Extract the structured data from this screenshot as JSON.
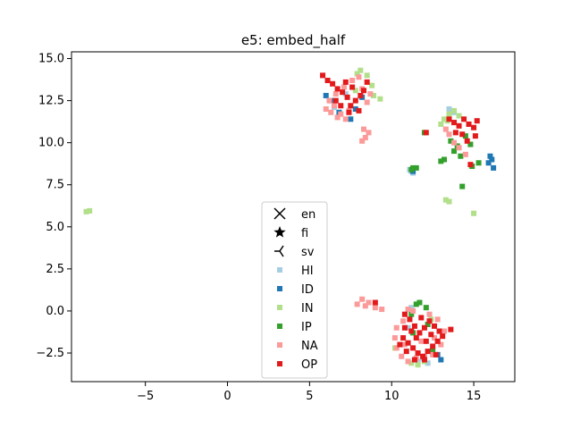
{
  "chart_data": {
    "type": "scatter",
    "title": "e5: embed_half",
    "xlabel": "",
    "ylabel": "",
    "xlim": [
      -9.5,
      17.5
    ],
    "ylim": [
      -4.2,
      15.4
    ],
    "xticks": [
      -5,
      0,
      5,
      10,
      15
    ],
    "xtick_labels": [
      "−5",
      "0",
      "5",
      "10",
      "15"
    ],
    "yticks": [
      -2.5,
      0.0,
      2.5,
      5.0,
      7.5,
      10.0,
      12.5,
      15.0
    ],
    "ytick_labels": [
      "−2.5",
      "0.0",
      "2.5",
      "5.0",
      "7.5",
      "10.0",
      "12.5",
      "15.0"
    ],
    "grid": false,
    "legend_position": "lower-center",
    "marker_legend": [
      {
        "label": "en",
        "marker": "x"
      },
      {
        "label": "fi",
        "marker": "star"
      },
      {
        "label": "sv",
        "marker": "tri"
      }
    ],
    "series": [
      {
        "name": "HI",
        "color": "#a6cee3",
        "points": [
          [
            11.2,
            8.3
          ],
          [
            11.1,
            8.4
          ],
          [
            11.3,
            8.2
          ],
          [
            13.8,
            11.8
          ],
          [
            13.5,
            12.0
          ],
          [
            11.6,
            -3.0
          ],
          [
            11.9,
            -2.8
          ],
          [
            12.2,
            -3.1
          ],
          [
            7.2,
            12.9
          ],
          [
            6.5,
            12.1
          ],
          [
            11.2,
            0.2
          ],
          [
            11.0,
            -1.0
          ]
        ]
      },
      {
        "name": "ID",
        "color": "#1f78b4",
        "points": [
          [
            6.0,
            12.8
          ],
          [
            6.3,
            12.5
          ],
          [
            6.8,
            11.8
          ],
          [
            7.5,
            11.4
          ],
          [
            7.8,
            12.0
          ],
          [
            16.0,
            9.2
          ],
          [
            15.9,
            8.8
          ],
          [
            16.2,
            8.5
          ],
          [
            16.1,
            9.0
          ],
          [
            13.0,
            -2.9
          ],
          [
            12.8,
            -2.6
          ],
          [
            11.3,
            8.3
          ],
          [
            8.2,
            12.7
          ]
        ]
      },
      {
        "name": "IN",
        "color": "#b2df8a",
        "points": [
          [
            -8.6,
            5.9
          ],
          [
            -8.4,
            5.95
          ],
          [
            7.9,
            14.1
          ],
          [
            8.1,
            14.3
          ],
          [
            8.5,
            14.0
          ],
          [
            8.8,
            13.4
          ],
          [
            8.9,
            12.8
          ],
          [
            9.3,
            12.6
          ],
          [
            13.2,
            11.4
          ],
          [
            13.5,
            11.7
          ],
          [
            13.8,
            11.9
          ],
          [
            14.1,
            11.6
          ],
          [
            13.4,
            11.3
          ],
          [
            13.0,
            11.1
          ],
          [
            13.3,
            6.6
          ],
          [
            13.5,
            6.5
          ],
          [
            15.0,
            5.8
          ],
          [
            11.2,
            -3.1
          ],
          [
            11.6,
            -3.2
          ],
          [
            12.0,
            -3.0
          ],
          [
            10.2,
            -2.2
          ],
          [
            12.4,
            -0.5
          ],
          [
            7.8,
            13.1
          ]
        ]
      },
      {
        "name": "IP",
        "color": "#33a02c",
        "points": [
          [
            11.2,
            -0.2
          ],
          [
            11.5,
            0.4
          ],
          [
            12.1,
            0.2
          ],
          [
            11.3,
            -1.3
          ],
          [
            13.2,
            9.0
          ],
          [
            13.0,
            8.9
          ],
          [
            13.8,
            9.5
          ],
          [
            14.2,
            9.2
          ],
          [
            14.0,
            9.8
          ],
          [
            14.5,
            10.4
          ],
          [
            14.8,
            9.9
          ],
          [
            13.6,
            10.1
          ],
          [
            11.2,
            8.4
          ],
          [
            11.3,
            8.5
          ],
          [
            11.5,
            8.5
          ],
          [
            12.0,
            10.6
          ],
          [
            14.3,
            7.4
          ],
          [
            14.9,
            8.6
          ],
          [
            15.3,
            8.8
          ],
          [
            11.7,
            0.5
          ],
          [
            12.2,
            -0.8
          ],
          [
            12.5,
            -2.3
          ]
        ]
      },
      {
        "name": "NA",
        "color": "#fb9a99",
        "points": [
          [
            6.0,
            12.0
          ],
          [
            6.3,
            11.8
          ],
          [
            6.5,
            12.2
          ],
          [
            6.7,
            11.5
          ],
          [
            6.9,
            11.7
          ],
          [
            7.2,
            11.4
          ],
          [
            7.4,
            11.9
          ],
          [
            6.2,
            12.5
          ],
          [
            6.6,
            12.9
          ],
          [
            7.1,
            13.3
          ],
          [
            7.6,
            13.7
          ],
          [
            8.0,
            13.9
          ],
          [
            8.2,
            13.2
          ],
          [
            8.5,
            12.4
          ],
          [
            8.7,
            12.9
          ],
          [
            8.3,
            10.8
          ],
          [
            8.4,
            10.3
          ],
          [
            8.6,
            10.6
          ],
          [
            8.2,
            10.1
          ],
          [
            13.5,
            10.5
          ],
          [
            13.8,
            10.0
          ],
          [
            14.1,
            9.7
          ],
          [
            14.5,
            9.3
          ],
          [
            13.3,
            10.8
          ],
          [
            7.9,
            0.4
          ],
          [
            8.2,
            0.7
          ],
          [
            8.6,
            0.5
          ],
          [
            9.0,
            0.2
          ],
          [
            9.4,
            0.1
          ],
          [
            8.4,
            0.3
          ],
          [
            10.3,
            -1.0
          ],
          [
            10.2,
            -1.6
          ],
          [
            10.3,
            -2.2
          ],
          [
            10.6,
            -2.7
          ],
          [
            11.0,
            -3.0
          ],
          [
            11.5,
            -2.8
          ],
          [
            12.0,
            -2.7
          ],
          [
            12.5,
            -2.6
          ],
          [
            13.0,
            -2.0
          ],
          [
            13.2,
            -1.2
          ],
          [
            12.8,
            -0.5
          ],
          [
            12.3,
            -0.2
          ],
          [
            11.0,
            0.1
          ],
          [
            10.7,
            -0.6
          ],
          [
            11.8,
            -1.8
          ],
          [
            12.6,
            -1.6
          ],
          [
            10.8,
            -2.0
          ],
          [
            11.3,
            0.0
          ]
        ]
      },
      {
        "name": "OP",
        "color": "#e31a1c",
        "points": [
          [
            5.8,
            14.0
          ],
          [
            6.1,
            13.7
          ],
          [
            6.4,
            13.5
          ],
          [
            6.7,
            13.2
          ],
          [
            7.0,
            13.0
          ],
          [
            7.3,
            12.7
          ],
          [
            6.6,
            12.5
          ],
          [
            7.5,
            12.2
          ],
          [
            7.8,
            12.5
          ],
          [
            8.1,
            12.8
          ],
          [
            8.3,
            13.1
          ],
          [
            7.2,
            13.6
          ],
          [
            6.9,
            12.2
          ],
          [
            7.6,
            13.3
          ],
          [
            8.5,
            13.6
          ],
          [
            7.4,
            11.8
          ],
          [
            8.0,
            11.9
          ],
          [
            13.8,
            11.2
          ],
          [
            14.1,
            11.0
          ],
          [
            14.4,
            11.4
          ],
          [
            14.7,
            11.1
          ],
          [
            15.0,
            10.9
          ],
          [
            15.2,
            11.3
          ],
          [
            14.3,
            10.5
          ],
          [
            13.9,
            10.6
          ],
          [
            14.6,
            10.1
          ],
          [
            13.5,
            11.4
          ],
          [
            15.1,
            10.4
          ],
          [
            14.8,
            8.7
          ],
          [
            12.1,
            10.6
          ],
          [
            10.8,
            -0.2
          ],
          [
            11.1,
            -0.5
          ],
          [
            11.4,
            -0.9
          ],
          [
            11.7,
            -1.3
          ],
          [
            12.0,
            -1.0
          ],
          [
            12.3,
            -0.6
          ],
          [
            12.6,
            -0.9
          ],
          [
            12.9,
            -1.2
          ],
          [
            13.1,
            -1.5
          ],
          [
            12.8,
            -1.8
          ],
          [
            12.5,
            -2.1
          ],
          [
            12.2,
            -2.4
          ],
          [
            11.9,
            -2.7
          ],
          [
            11.6,
            -2.5
          ],
          [
            11.3,
            -2.2
          ],
          [
            11.0,
            -1.9
          ],
          [
            10.7,
            -1.6
          ],
          [
            10.5,
            -2.0
          ],
          [
            10.9,
            -2.4
          ],
          [
            11.5,
            -1.6
          ],
          [
            12.1,
            -1.8
          ],
          [
            12.4,
            -1.4
          ],
          [
            11.2,
            -1.2
          ],
          [
            11.8,
            -0.4
          ],
          [
            12.0,
            -2.9
          ],
          [
            11.4,
            -2.9
          ],
          [
            10.8,
            -1.0
          ],
          [
            9.0,
            0.5
          ],
          [
            13.6,
            -1.1
          ],
          [
            12.7,
            -2.6
          ]
        ]
      }
    ]
  }
}
